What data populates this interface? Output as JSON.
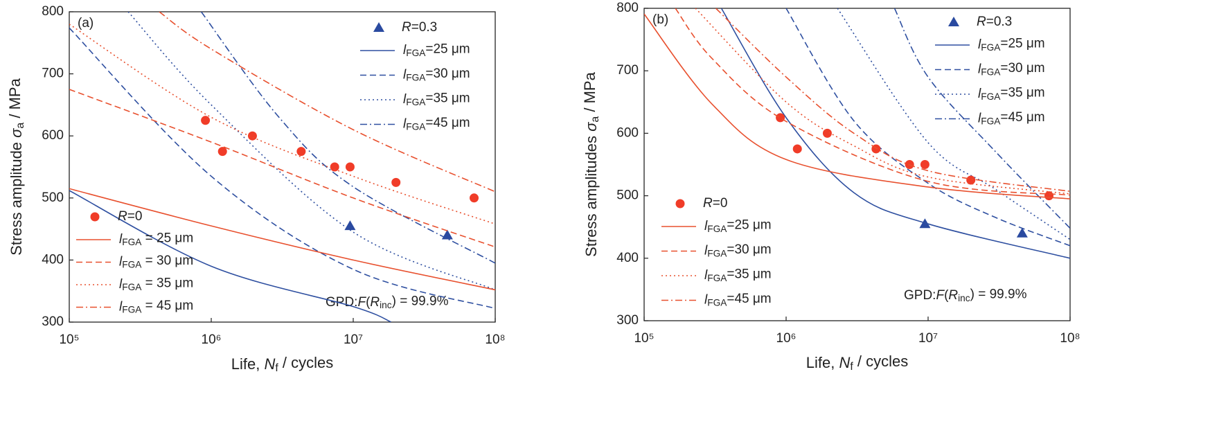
{
  "chart_data": [
    {
      "type": "line",
      "panel_label": "(a)",
      "x_label": [
        "Life, ",
        "N",
        "f",
        " / cycles"
      ],
      "y_label": [
        "Stress amplitude ",
        "σ",
        "a",
        " / MPa"
      ],
      "annotation": [
        "GPD:",
        "F",
        "(",
        "R",
        "inc",
        ") = 99.9%"
      ],
      "log_x": true,
      "xlim": [
        100000,
        100000000
      ],
      "xticks": [
        {
          "value": 100000,
          "label": "10⁵"
        },
        {
          "value": 1000000,
          "label": "10⁶"
        },
        {
          "value": 10000000,
          "label": "10⁷"
        },
        {
          "value": 100000000,
          "label": "10⁸"
        }
      ],
      "ylim": [
        300,
        800
      ],
      "yticks": [
        300,
        400,
        500,
        600,
        700,
        800
      ],
      "series": [
        {
          "name": [
            "R",
            "=0.3"
          ],
          "color": "#2a4aa0",
          "marker": "triangle",
          "x": [
            9500000,
            46000000
          ],
          "values": [
            455,
            440
          ]
        },
        {
          "name": [
            "l",
            "FGA",
            "=25 μm"
          ],
          "color": "#2e4fa0",
          "linestyle": "solid",
          "x": [
            100000,
            1000000,
            10000000,
            18500000
          ],
          "values": [
            512,
            390,
            325,
            300
          ]
        },
        {
          "name": [
            "l",
            "FGA",
            "=30 μm"
          ],
          "color": "#2e4fa0",
          "linestyle": "dashed",
          "x": [
            100000,
            1000000,
            10000000,
            100000000
          ],
          "values": [
            774,
            535,
            385,
            322
          ]
        },
        {
          "name": [
            "l",
            "FGA",
            "=35 μm"
          ],
          "color": "#2e4fa0",
          "linestyle": "dotted",
          "x": [
            260000,
            1000000,
            10000000,
            100000000
          ],
          "values": [
            800,
            650,
            445,
            352
          ]
        },
        {
          "name": [
            "l",
            "FGA",
            "=45 μm"
          ],
          "color": "#2e4fa0",
          "linestyle": "dashdot",
          "x": [
            850000,
            3000000,
            10000000,
            100000000
          ],
          "values": [
            800,
            630,
            518,
            395
          ]
        },
        {
          "name": [
            "R",
            "=0"
          ],
          "color": "#f03c28",
          "marker": "circle",
          "x": [
            910000,
            1200000,
            1950000,
            4300000,
            7400000,
            9500000,
            20000000,
            71000000
          ],
          "values": [
            625,
            575,
            600,
            575,
            550,
            550,
            525,
            500
          ]
        },
        {
          "name": [
            "l",
            "FGA",
            " = 25 μm"
          ],
          "color": "#e8502e",
          "linestyle": "solid",
          "x": [
            100000,
            1000000,
            10000000,
            100000000
          ],
          "values": [
            515,
            455,
            400,
            352
          ]
        },
        {
          "name": [
            "l",
            "FGA",
            " = 30 μm"
          ],
          "color": "#e8502e",
          "linestyle": "dashed",
          "x": [
            100000,
            1000000,
            10000000,
            100000000
          ],
          "values": [
            675,
            590,
            500,
            421
          ]
        },
        {
          "name": [
            "l",
            "FGA",
            " = 35 μm"
          ],
          "color": "#e8502e",
          "linestyle": "dotted",
          "x": [
            100000,
            1000000,
            10000000,
            100000000
          ],
          "values": [
            780,
            630,
            535,
            458
          ]
        },
        {
          "name": [
            "l",
            "FGA",
            " = 45 μm"
          ],
          "color": "#e8502e",
          "linestyle": "dashdot",
          "x": [
            430000,
            1000000,
            10000000,
            100000000
          ],
          "values": [
            800,
            740,
            610,
            510
          ]
        }
      ]
    },
    {
      "type": "line",
      "panel_label": "(b)",
      "x_label": [
        "Life, ",
        "N",
        "f",
        " / cycles"
      ],
      "y_label": [
        "Stress amplitudes ",
        "σ",
        "a",
        " / MPa"
      ],
      "annotation": [
        "GPD:",
        "F",
        "(",
        "R",
        "inc",
        ") = 99.9%"
      ],
      "log_x": true,
      "xlim": [
        100000,
        100000000
      ],
      "xticks": [
        {
          "value": 100000,
          "label": "10⁵"
        },
        {
          "value": 1000000,
          "label": "10⁶"
        },
        {
          "value": 10000000,
          "label": "10⁷"
        },
        {
          "value": 100000000,
          "label": "10⁸"
        }
      ],
      "ylim": [
        300,
        800
      ],
      "yticks": [
        300,
        400,
        500,
        600,
        700,
        800
      ],
      "series": [
        {
          "name": [
            "R",
            "=0.3"
          ],
          "color": "#2a4aa0",
          "marker": "triangle",
          "x": [
            9500000,
            46000000
          ],
          "values": [
            455,
            440
          ]
        },
        {
          "name": [
            "l",
            "FGA",
            "=25 μm"
          ],
          "color": "#2e4fa0",
          "linestyle": "solid",
          "x": [
            350000,
            1000000,
            3000000,
            10000000,
            100000000
          ],
          "values": [
            800,
            625,
            505,
            455,
            400
          ]
        },
        {
          "name": [
            "l",
            "FGA",
            "=30 μm"
          ],
          "color": "#2e4fa0",
          "linestyle": "dashed",
          "x": [
            1000000,
            3000000,
            10000000,
            30000000,
            100000000
          ],
          "values": [
            800,
            620,
            520,
            465,
            420
          ]
        },
        {
          "name": [
            "l",
            "FGA",
            "=35 μm"
          ],
          "color": "#2e4fa0",
          "linestyle": "dotted",
          "x": [
            2300000,
            10000000,
            30000000,
            100000000
          ],
          "values": [
            800,
            585,
            510,
            430
          ]
        },
        {
          "name": [
            "l",
            "FGA",
            "=45 μm"
          ],
          "color": "#2e4fa0",
          "linestyle": "dashdot",
          "x": [
            5800000,
            10000000,
            30000000,
            100000000
          ],
          "values": [
            800,
            690,
            570,
            448
          ]
        },
        {
          "name": [
            "R",
            "=0"
          ],
          "color": "#f03c28",
          "marker": "circle",
          "x": [
            910000,
            1200000,
            1950000,
            4300000,
            7400000,
            9500000,
            20000000,
            71000000
          ],
          "values": [
            625,
            575,
            600,
            575,
            550,
            550,
            525,
            500
          ]
        },
        {
          "name": [
            "l",
            "FGA",
            "=25 μm"
          ],
          "color": "#e8502e",
          "linestyle": "solid",
          "x": [
            100000,
            300000,
            1000000,
            10000000,
            100000000
          ],
          "values": [
            791,
            647,
            558,
            514,
            495
          ]
        },
        {
          "name": [
            "l",
            "FGA",
            "=30 μm"
          ],
          "color": "#e8502e",
          "linestyle": "dashed",
          "x": [
            166000,
            300000,
            1000000,
            10000000,
            100000000
          ],
          "values": [
            800,
            720,
            619,
            523,
            501
          ]
        },
        {
          "name": [
            "l",
            "FGA",
            "=35 μm"
          ],
          "color": "#e8502e",
          "linestyle": "dotted",
          "x": [
            230000,
            1000000,
            3000000,
            10000000,
            100000000
          ],
          "values": [
            800,
            650,
            580,
            530,
            503
          ]
        },
        {
          "name": [
            "l",
            "FGA",
            "=45 μm"
          ],
          "color": "#e8502e",
          "linestyle": "dashdot",
          "x": [
            320000,
            1000000,
            3000000,
            10000000,
            100000000
          ],
          "values": [
            800,
            690,
            600,
            540,
            507
          ]
        }
      ]
    }
  ]
}
